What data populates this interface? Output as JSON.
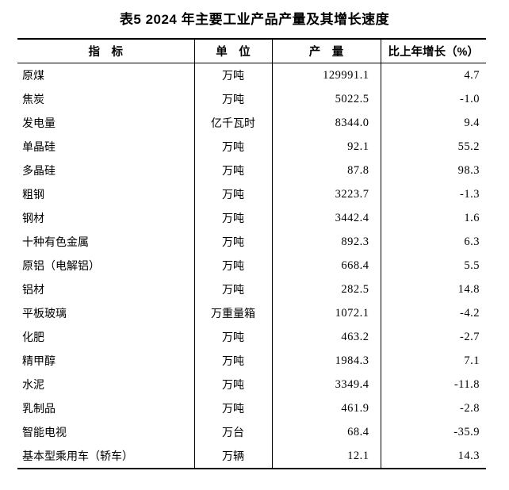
{
  "page": {
    "background_color": "#ffffff",
    "text_color": "#000000",
    "rule_color": "#000000"
  },
  "title": "表5 2024 年主要工业产品产量及其增长速度",
  "table": {
    "headers": {
      "indicator": "指　标",
      "unit": "单　位",
      "output": "产　量",
      "growth": "比上年增长（%）"
    },
    "rows": [
      {
        "indicator": "原煤",
        "unit": "万吨",
        "output": "129991.1",
        "growth": "4.7"
      },
      {
        "indicator": "焦炭",
        "unit": "万吨",
        "output": "5022.5",
        "growth": "-1.0"
      },
      {
        "indicator": "发电量",
        "unit": "亿千瓦时",
        "output": "8344.0",
        "growth": "9.4"
      },
      {
        "indicator": "单晶硅",
        "unit": "万吨",
        "output": "92.1",
        "growth": "55.2"
      },
      {
        "indicator": "多晶硅",
        "unit": "万吨",
        "output": "87.8",
        "growth": "98.3"
      },
      {
        "indicator": "粗钢",
        "unit": "万吨",
        "output": "3223.7",
        "growth": "-1.3"
      },
      {
        "indicator": "钢材",
        "unit": "万吨",
        "output": "3442.4",
        "growth": "1.6"
      },
      {
        "indicator": "十种有色金属",
        "unit": "万吨",
        "output": "892.3",
        "growth": "6.3"
      },
      {
        "indicator": "原铝（电解铝）",
        "unit": "万吨",
        "output": "668.4",
        "growth": "5.5"
      },
      {
        "indicator": "铝材",
        "unit": "万吨",
        "output": "282.5",
        "growth": "14.8"
      },
      {
        "indicator": "平板玻璃",
        "unit": "万重量箱",
        "output": "1072.1",
        "growth": "-4.2"
      },
      {
        "indicator": "化肥",
        "unit": "万吨",
        "output": "463.2",
        "growth": "-2.7"
      },
      {
        "indicator": "精甲醇",
        "unit": "万吨",
        "output": "1984.3",
        "growth": "7.1"
      },
      {
        "indicator": "水泥",
        "unit": "万吨",
        "output": "3349.4",
        "growth": "-11.8"
      },
      {
        "indicator": "乳制品",
        "unit": "万吨",
        "output": "461.9",
        "growth": "-2.8"
      },
      {
        "indicator": "智能电视",
        "unit": "万台",
        "output": "68.4",
        "growth": "-35.9"
      },
      {
        "indicator": "基本型乘用车（轿车）",
        "unit": "万辆",
        "output": "12.1",
        "growth": "14.3"
      }
    ]
  }
}
